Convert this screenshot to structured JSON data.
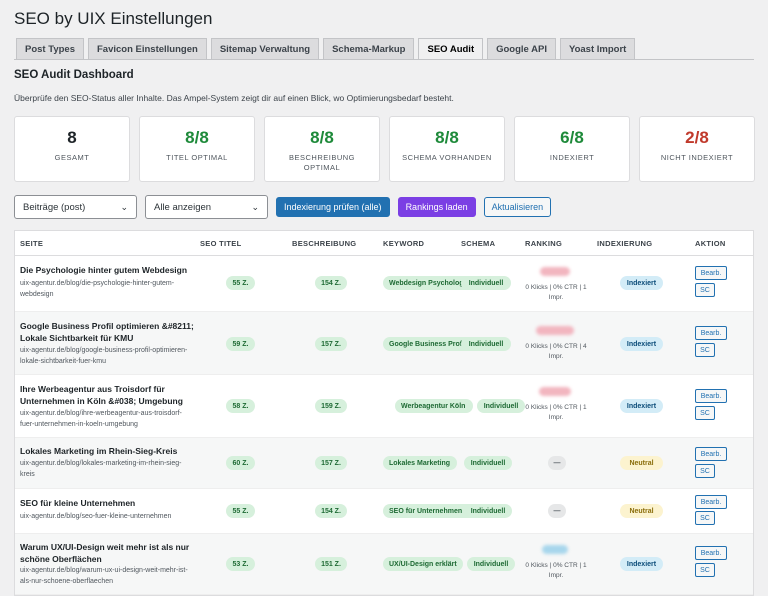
{
  "page_title": "SEO by UIX Einstellungen",
  "tabs": [
    "Post Types",
    "Favicon Einstellungen",
    "Sitemap Verwaltung",
    "Schema-Markup",
    "SEO Audit",
    "Google API",
    "Yoast Import"
  ],
  "active_tab": "SEO Audit",
  "dashboard": {
    "heading": "SEO Audit Dashboard",
    "description": "Überprüfe den SEO-Status aller Inhalte. Das Ampel-System zeigt dir auf einen Blick, wo Optimierungsbedarf besteht."
  },
  "cards": [
    {
      "value": "8",
      "label": "GESAMT"
    },
    {
      "value": "8/8",
      "label": "TITEL OPTIMAL"
    },
    {
      "value": "8/8",
      "label": "BESCHREIBUNG OPTIMAL"
    },
    {
      "value": "8/8",
      "label": "SCHEMA VORHANDEN"
    },
    {
      "value": "6/8",
      "label": "INDEXIERT"
    },
    {
      "value": "2/8",
      "label": "NICHT INDEXIERT"
    }
  ],
  "controls": {
    "post_type_select": "Beiträge (post)",
    "filter_select": "Alle anzeigen",
    "check_index_button": "Indexierung prüfen (alle)",
    "load_rankings_button": "Rankings laden",
    "refresh_button": "Aktualisieren"
  },
  "table": {
    "headers": [
      "SEITE",
      "SEO TITEL",
      "BESCHREIBUNG",
      "KEYWORD",
      "SCHEMA",
      "RANKING",
      "INDEXIERUNG",
      "AKTION"
    ],
    "edit_label": "Bearb.",
    "sc_label": "SC",
    "rows": [
      {
        "title": "Die Psychologie hinter gutem Webdesign",
        "url": "uix-agentur.de/blog/die-psychologie-hinter-gutem-webdesign",
        "seo_title": "55 Z.",
        "description": "154 Z.",
        "keyword": "Webdesign Psychologie",
        "schema": "Individuell",
        "ranking_sub": "0 Klicks | 0% CTR | 1 Impr.",
        "index": "Indexiert"
      },
      {
        "title": "Google Business Profil optimieren &#8211; Lokale Sichtbarkeit für KMU",
        "url": "uix-agentur.de/blog/google-business-profil-optimieren-lokale-sichtbarkeit-fuer-kmu",
        "seo_title": "59 Z.",
        "description": "157 Z.",
        "keyword": "Google Business Profil",
        "schema": "Individuell",
        "ranking_sub": "0 Klicks | 0% CTR | 4 Impr.",
        "index": "Indexiert"
      },
      {
        "title": "Ihre Werbeagentur aus Troisdorf für Unternehmen in Köln &#038; Umgebung",
        "url": "uix-agentur.de/blog/ihre-werbeagentur-aus-troisdorf-fuer-unternehmen-in-koeln-umgebung",
        "seo_title": "58 Z.",
        "description": "159 Z.",
        "keyword": "Werbeagentur Köln",
        "schema": "Individuell",
        "ranking_sub": "0 Klicks | 0% CTR | 1 Impr.",
        "index": "Indexiert"
      },
      {
        "title": "Lokales Marketing im Rhein-Sieg-Kreis",
        "url": "uix-agentur.de/blog/lokales-marketing-im-rhein-sieg-kreis",
        "seo_title": "60 Z.",
        "description": "157 Z.",
        "keyword": "Lokales Marketing",
        "schema": "Individuell",
        "ranking": "—",
        "index": "Neutral"
      },
      {
        "title": "SEO für kleine Unternehmen",
        "url": "uix-agentur.de/blog/seo-fuer-kleine-unternehmen",
        "seo_title": "55 Z.",
        "description": "154 Z.",
        "keyword": "SEO für Unternehmen",
        "schema": "Individuell",
        "ranking": "—",
        "index": "Neutral"
      },
      {
        "title": "Warum UX/UI-Design weit mehr ist als nur schöne Oberflächen",
        "url": "uix-agentur.de/blog/warum-ux-ui-design-weit-mehr-ist-als-nur-schoene-oberflaechen",
        "seo_title": "53 Z.",
        "description": "151 Z.",
        "keyword": "UX/UI-Design erklärt",
        "schema": "Individuell",
        "ranking_sub": "0 Klicks | 0% CTR | 1 Impr.",
        "index": "Indexiert"
      }
    ]
  }
}
